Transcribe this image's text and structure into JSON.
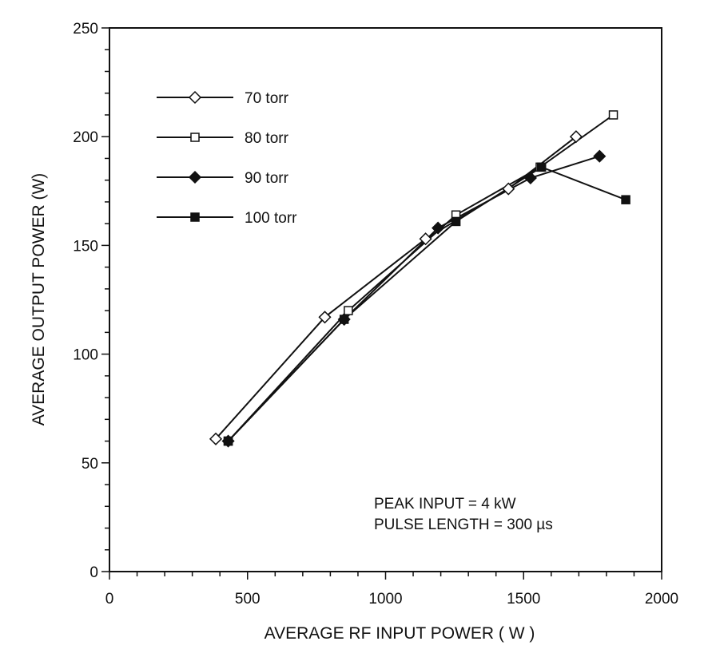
{
  "chart_data": {
    "type": "line",
    "title": "",
    "xlabel": "AVERAGE RF INPUT POWER ( W )",
    "ylabel": "AVERAGE OUTPUT POWER (W)",
    "xlim": [
      0,
      2000
    ],
    "ylim": [
      0,
      250
    ],
    "xticks": [
      0,
      500,
      1000,
      1500,
      2000
    ],
    "yticks": [
      0,
      50,
      100,
      150,
      200,
      250
    ],
    "grid": false,
    "legend_position": "top-left",
    "series": [
      {
        "name": "70 torr",
        "marker": "open-diamond",
        "points": [
          [
            385,
            61
          ],
          [
            780,
            117
          ],
          [
            1145,
            153
          ],
          [
            1445,
            176
          ],
          [
            1690,
            200
          ]
        ]
      },
      {
        "name": "80 torr",
        "marker": "open-square",
        "points": [
          [
            430,
            60
          ],
          [
            865,
            120
          ],
          [
            1255,
            164
          ],
          [
            1560,
            186
          ],
          [
            1825,
            210
          ]
        ]
      },
      {
        "name": "90  torr",
        "marker": "filled-diamond",
        "points": [
          [
            430,
            60
          ],
          [
            850,
            116
          ],
          [
            1190,
            158
          ],
          [
            1525,
            181
          ],
          [
            1775,
            191
          ]
        ]
      },
      {
        "name": "100 torr",
        "marker": "filled-square",
        "points": [
          [
            430,
            60
          ],
          [
            850,
            116
          ],
          [
            1255,
            161
          ],
          [
            1565,
            186
          ],
          [
            1870,
            171
          ]
        ]
      }
    ],
    "annotations": [
      "PEAK INPUT = 4 kW",
      "PULSE LENGTH = 300 µs"
    ]
  }
}
